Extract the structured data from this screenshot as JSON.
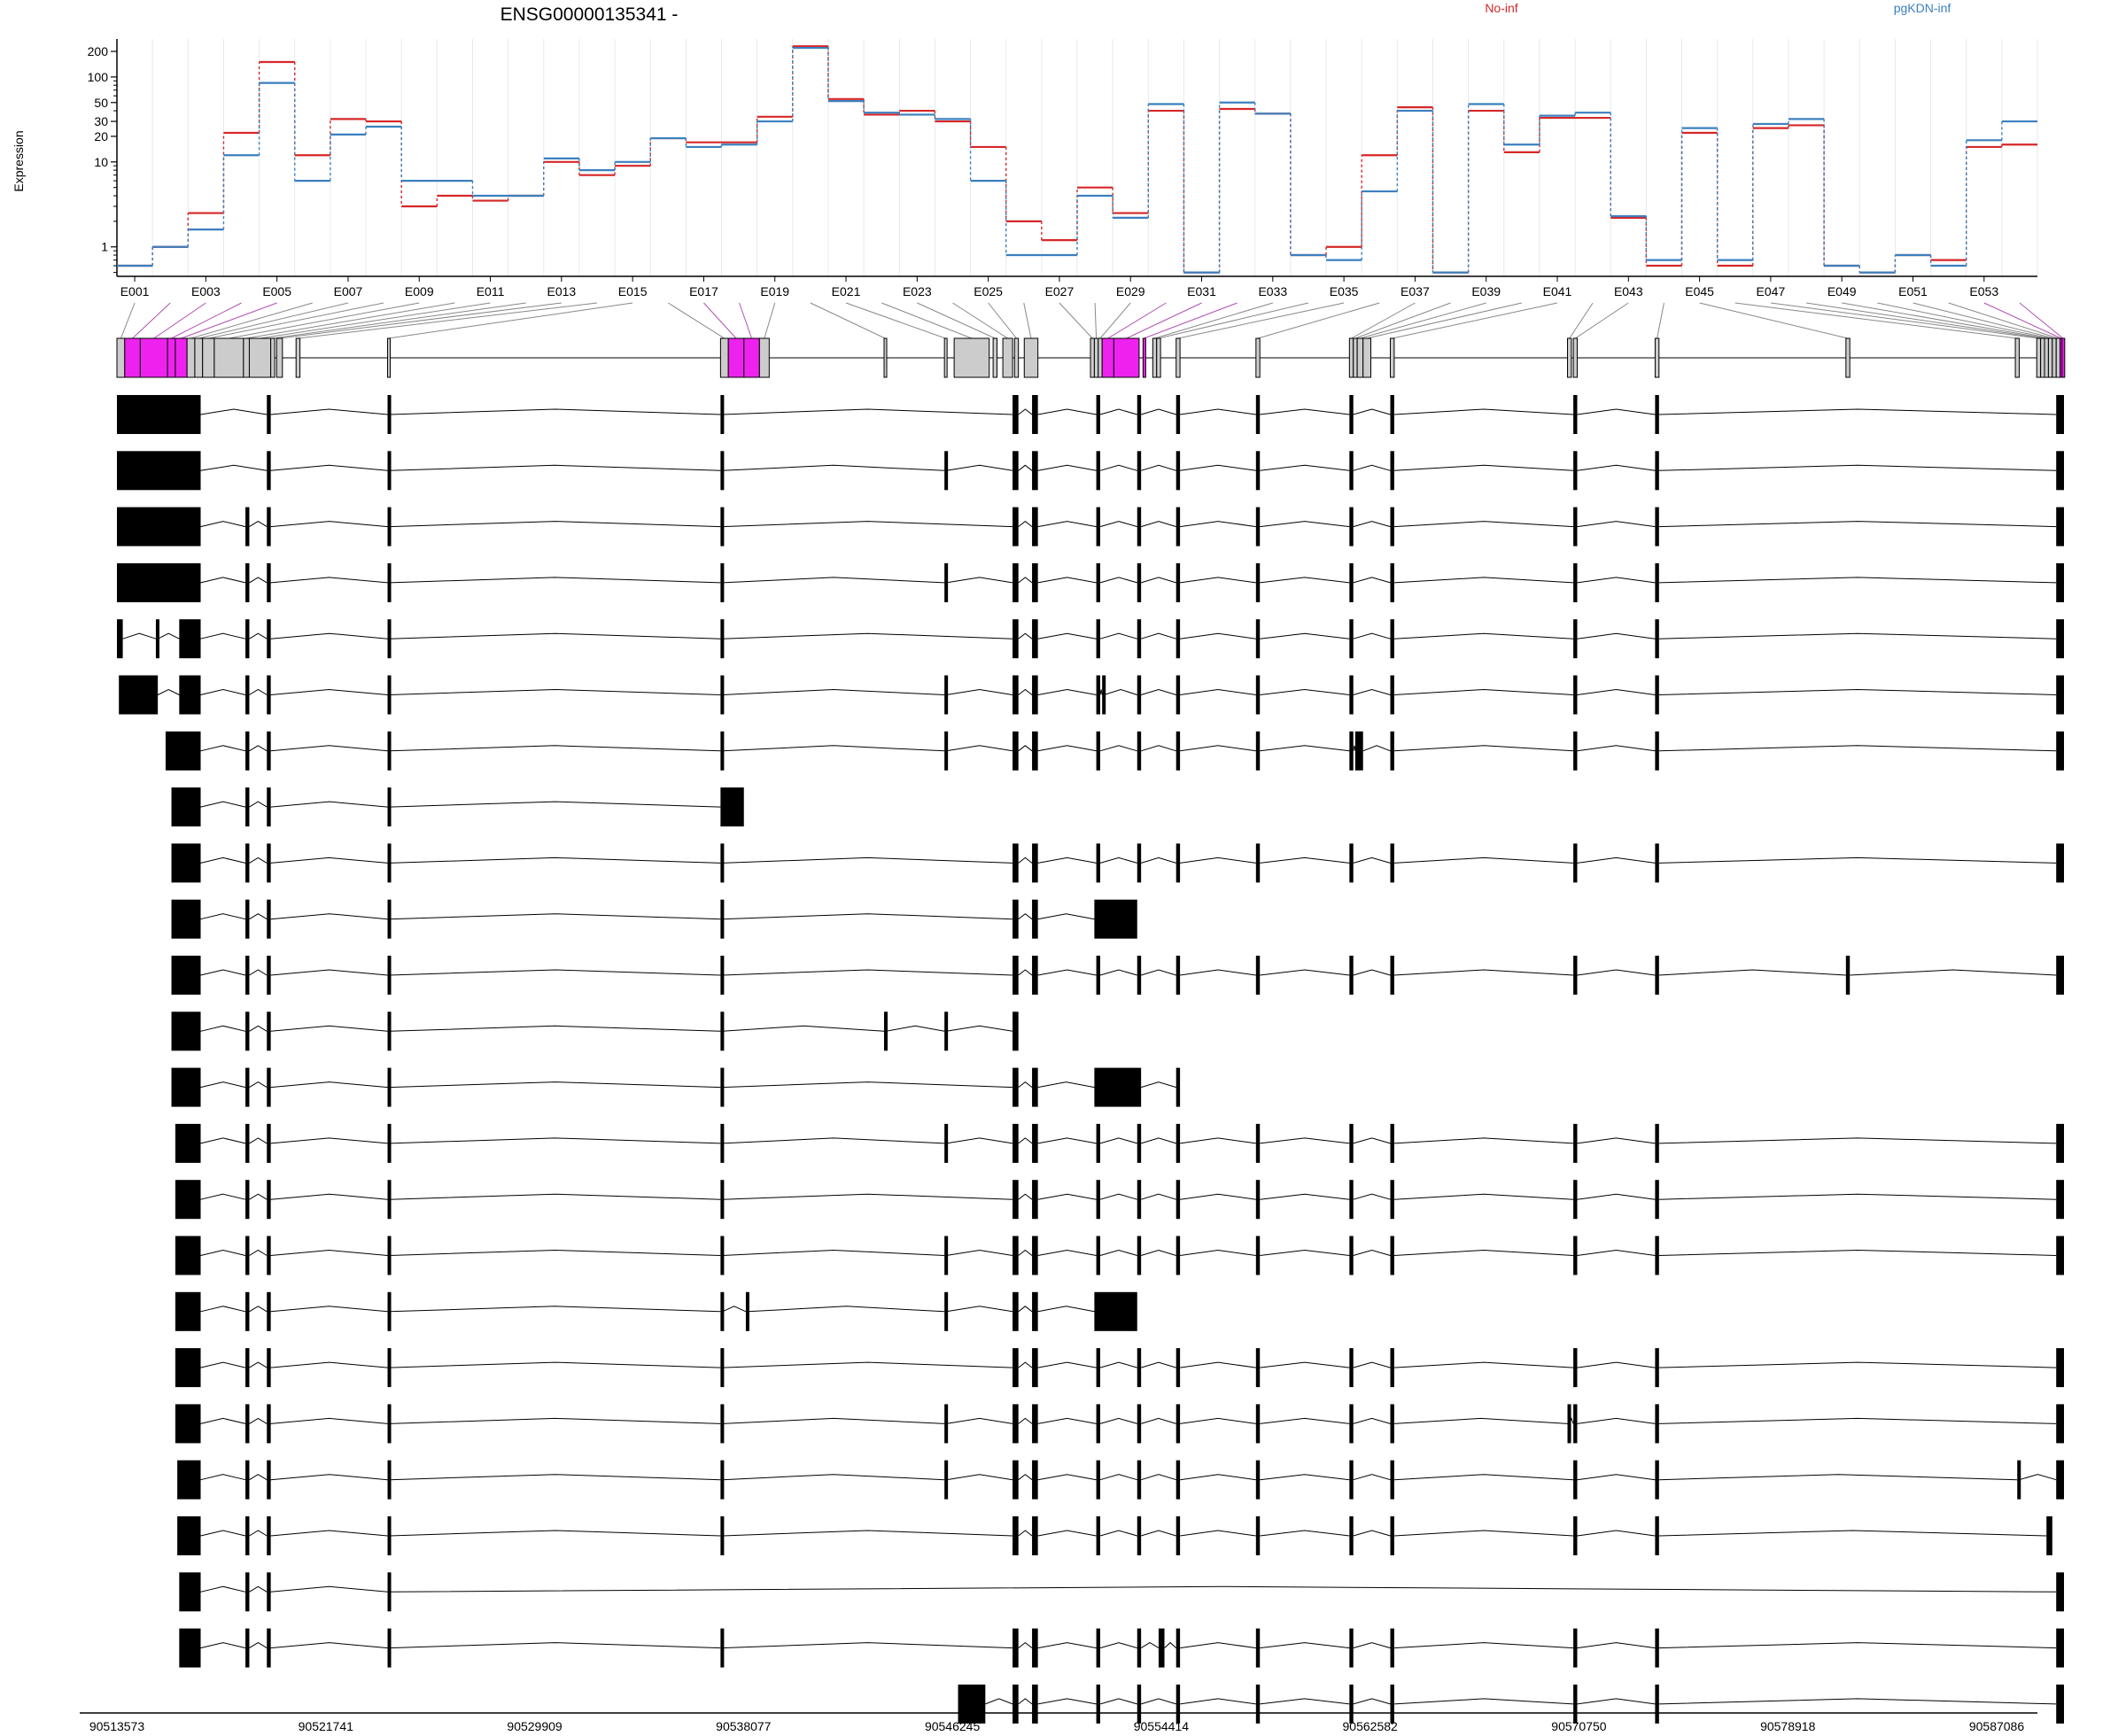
{
  "title": "ENSG00000135341 -",
  "ylabel": "Expression",
  "legend": [
    {
      "name": "No-inf",
      "color": "#d62728"
    },
    {
      "name": "pgKDN-inf",
      "color": "#3b7fbf"
    }
  ],
  "colors": {
    "highlight_exon": "#ee22ee",
    "gene_exon": "#cccccc",
    "transcript_exon": "#000000",
    "connector_default": "#888888",
    "connector_highlight": "#b050b0"
  },
  "chart_data": {
    "type": "line",
    "title": "ENSG00000135341 -",
    "ylabel": "Expression",
    "xlabel": "",
    "y_scale": "log",
    "ylim": [
      0.45,
      280
    ],
    "y_ticks": [
      1,
      10,
      20,
      30,
      50,
      100,
      200
    ],
    "exon_ticks": [
      "E001",
      "E003",
      "E005",
      "E007",
      "E009",
      "E011",
      "E013",
      "E015",
      "E017",
      "E019",
      "E021",
      "E023",
      "E025",
      "E027",
      "E029",
      "E031",
      "E033",
      "E035",
      "E037",
      "E039",
      "E041",
      "E043",
      "E045",
      "E047",
      "E049",
      "E051",
      "E053"
    ],
    "exons": [
      "E001",
      "E002",
      "E003",
      "E004",
      "E005",
      "E006",
      "E007",
      "E008",
      "E009",
      "E010",
      "E011",
      "E012",
      "E013",
      "E014",
      "E015",
      "E016",
      "E017",
      "E018",
      "E019",
      "E020",
      "E021",
      "E022",
      "E023",
      "E024",
      "E025",
      "E026",
      "E027",
      "E028",
      "E029",
      "E030",
      "E031",
      "E032",
      "E033",
      "E034",
      "E035",
      "E036",
      "E037",
      "E038",
      "E039",
      "E040",
      "E041",
      "E042",
      "E043",
      "E044",
      "E045",
      "E046",
      "E047",
      "E048",
      "E049",
      "E050",
      "E051",
      "E052",
      "E053",
      "E054"
    ],
    "series": [
      {
        "name": "No-inf",
        "values": [
          0.6,
          1.0,
          2.5,
          22,
          150,
          12,
          32,
          30,
          3,
          4,
          3.5,
          4,
          10,
          7,
          9,
          19,
          17,
          17,
          34,
          230,
          55,
          36,
          40,
          30,
          15,
          2,
          1.2,
          5,
          2.5,
          40,
          0.5,
          42,
          37,
          0.8,
          1,
          12,
          44,
          0.5,
          40,
          13,
          33,
          33,
          2.2,
          0.6,
          22,
          0.6,
          25,
          27,
          0.6,
          0.5,
          0.8,
          0.7,
          15,
          16
        ]
      },
      {
        "name": "pgKDN-inf",
        "values": [
          0.6,
          1.0,
          1.6,
          12,
          85,
          6,
          21,
          26,
          6,
          6,
          4,
          4,
          11,
          8,
          10,
          19,
          15,
          16,
          30,
          220,
          52,
          38,
          36,
          32,
          6,
          0.8,
          0.8,
          4,
          2.2,
          48,
          0.5,
          50,
          37,
          0.8,
          0.7,
          4.5,
          40,
          0.5,
          48,
          16,
          35,
          38,
          2.3,
          0.7,
          25,
          0.7,
          28,
          32,
          0.6,
          0.5,
          0.8,
          0.6,
          18,
          30
        ]
      }
    ]
  },
  "genome_ticks": [
    "90513573",
    "90521741",
    "90529909",
    "90538077",
    "90546245",
    "90554414",
    "90562582",
    "90570750",
    "90578918",
    "90587086"
  ]
}
